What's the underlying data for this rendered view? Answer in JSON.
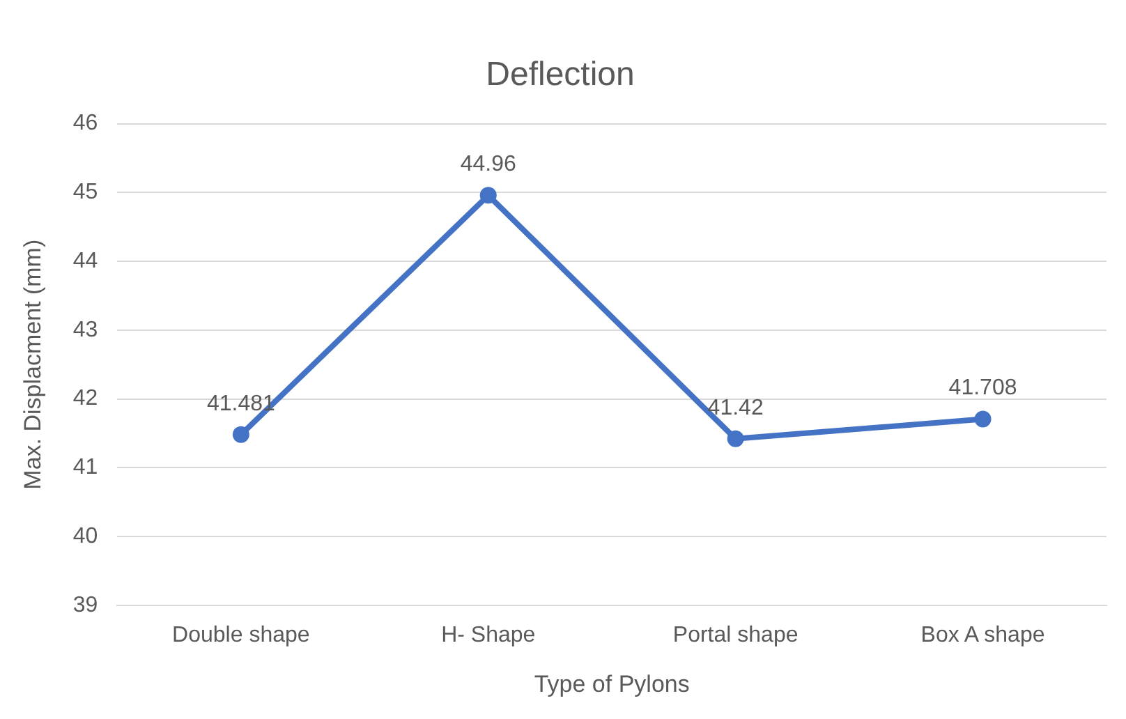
{
  "chart_data": {
    "type": "line",
    "title": "Deflection",
    "xlabel": "Type of Pylons",
    "ylabel": "Max. Displacment (mm)",
    "categories": [
      "Double shape",
      "H- Shape",
      "Portal shape",
      "Box A shape"
    ],
    "series": [
      {
        "color": "#4472c4",
        "values": [
          41.481,
          44.96,
          41.42,
          41.708
        ]
      }
    ],
    "ylim": [
      39,
      46
    ],
    "yticks": [
      39,
      40,
      41,
      42,
      43,
      44,
      45,
      46
    ],
    "grid": "y",
    "marker": "circle",
    "line_style": "solid",
    "data_labels": true
  }
}
